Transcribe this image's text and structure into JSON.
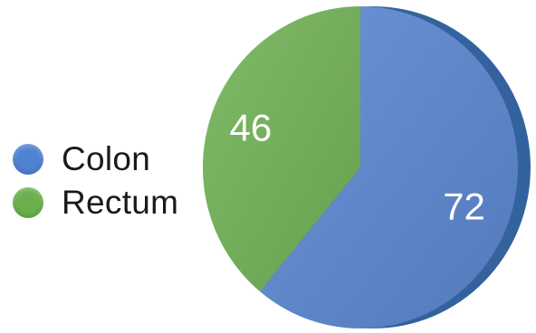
{
  "chart_data": {
    "type": "pie",
    "categories": [
      "Colon",
      "Rectum"
    ],
    "values": [
      72,
      46
    ],
    "legend_position": "left",
    "data_labels": true,
    "colors": {
      "Colon": "#4f82d0",
      "Rectum": "#6ab04c"
    },
    "edge_color": "#34629e",
    "style": "3d-tilted",
    "title": "",
    "xlabel": "",
    "ylabel": ""
  }
}
